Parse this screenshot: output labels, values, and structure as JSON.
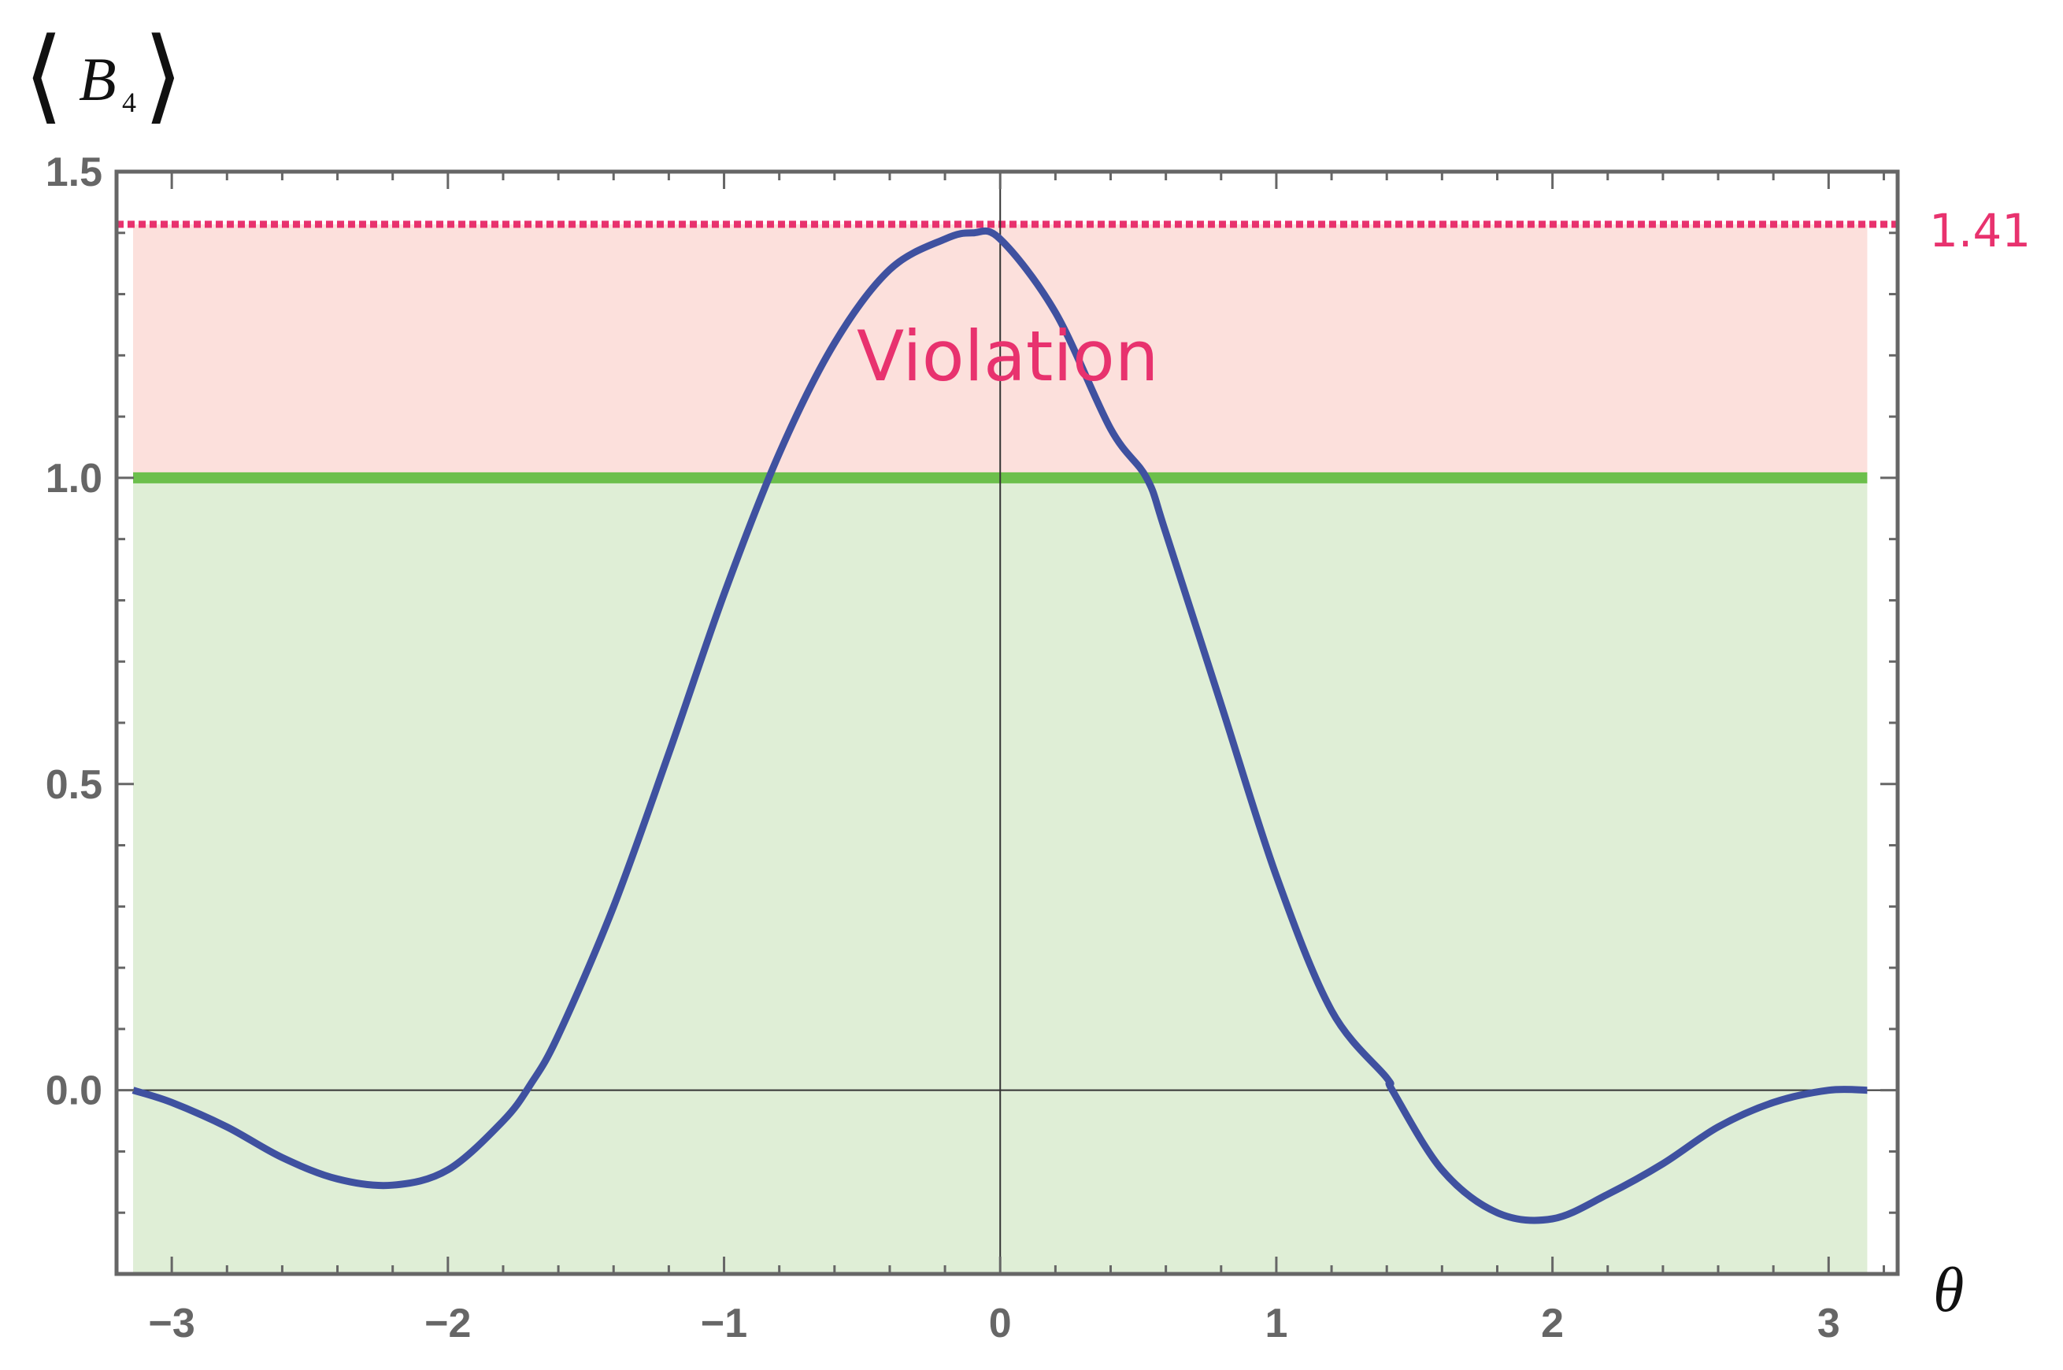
{
  "chart_data": {
    "type": "line",
    "title": "",
    "ylabel": {
      "main": "B",
      "subscript": "4"
    },
    "xlabel": "θ",
    "xlim": [
      -3.2,
      3.25
    ],
    "ylim": [
      -0.3,
      1.5
    ],
    "x_ticks": [
      {
        "value": -3,
        "label": "−3"
      },
      {
        "value": -2,
        "label": "−2"
      },
      {
        "value": -1,
        "label": "−1"
      },
      {
        "value": 0,
        "label": "0"
      },
      {
        "value": 1,
        "label": "1"
      },
      {
        "value": 2,
        "label": "2"
      },
      {
        "value": 3,
        "label": "3"
      }
    ],
    "y_ticks": [
      {
        "value": 0.0,
        "label": "0.0"
      },
      {
        "value": 0.5,
        "label": "0.5"
      },
      {
        "value": 1.0,
        "label": "1.0"
      },
      {
        "value": 1.5,
        "label": "1.5"
      }
    ],
    "regions": {
      "violation": {
        "label": "Violation",
        "y_range": [
          1.0,
          1.414
        ],
        "color": "#fce0dc"
      },
      "classical": {
        "y_range": [
          -0.3,
          1.0
        ],
        "color": "#dfeed6"
      }
    },
    "reference_lines": {
      "classical_bound": {
        "y": 1.0,
        "color": "#6cbf4c"
      },
      "quantum_bound": {
        "y": 1.414,
        "label": "1.41",
        "color": "#e8326e"
      }
    },
    "series": [
      {
        "color": "#3f51a0",
        "x": [
          -3.14,
          -3.0,
          -2.8,
          -2.6,
          -2.4,
          -2.2,
          -2.0,
          -1.8,
          -1.7,
          -1.6,
          -1.4,
          -1.2,
          -1.0,
          -0.8,
          -0.6,
          -0.4,
          -0.2,
          -0.1,
          0.0,
          0.2,
          0.4,
          0.53,
          0.6,
          0.8,
          1.0,
          1.2,
          1.4,
          1.42,
          1.6,
          1.8,
          2.0,
          2.2,
          2.4,
          2.6,
          2.8,
          3.0,
          3.14
        ],
        "y": [
          0.0,
          -0.02,
          -0.06,
          -0.11,
          -0.145,
          -0.155,
          -0.13,
          -0.05,
          0.01,
          0.09,
          0.3,
          0.55,
          0.81,
          1.04,
          1.22,
          1.34,
          1.39,
          1.4,
          1.39,
          1.27,
          1.08,
          1.0,
          0.91,
          0.63,
          0.35,
          0.13,
          0.02,
          0.0,
          -0.13,
          -0.2,
          -0.21,
          -0.17,
          -0.12,
          -0.06,
          -0.02,
          0.0,
          0.0
        ]
      }
    ]
  }
}
